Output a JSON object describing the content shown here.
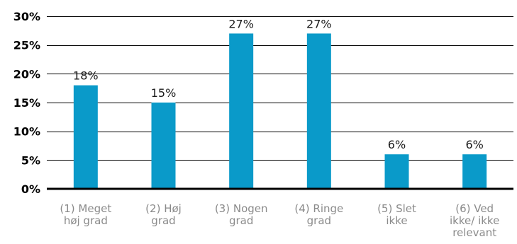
{
  "chart_data": {
    "type": "bar",
    "title": "",
    "xlabel": "",
    "ylabel": "",
    "categories": [
      [
        "(1) Meget",
        "høj grad"
      ],
      [
        "(2) Høj",
        "grad"
      ],
      [
        "(3) Nogen",
        "grad"
      ],
      [
        "(4) Ringe",
        "grad"
      ],
      [
        "(5) Slet",
        "ikke"
      ],
      [
        "(6) Ved",
        "ikke/ ikke",
        "relevant"
      ]
    ],
    "values": [
      18,
      15,
      27,
      27,
      6,
      6
    ],
    "data_labels": [
      "18%",
      "15%",
      "27%",
      "27%",
      "6%",
      "6%"
    ],
    "ylim": [
      0,
      30
    ],
    "y_ticks": [
      0,
      5,
      10,
      15,
      20,
      25,
      30
    ],
    "y_tick_labels": [
      "0%",
      "5%",
      "10%",
      "15%",
      "20%",
      "25%",
      "30%"
    ],
    "grid": true,
    "legend": "none",
    "bar_color": "#0a9ac9",
    "axis_color": "#000000",
    "category_label_color": "#8a8a8a"
  }
}
